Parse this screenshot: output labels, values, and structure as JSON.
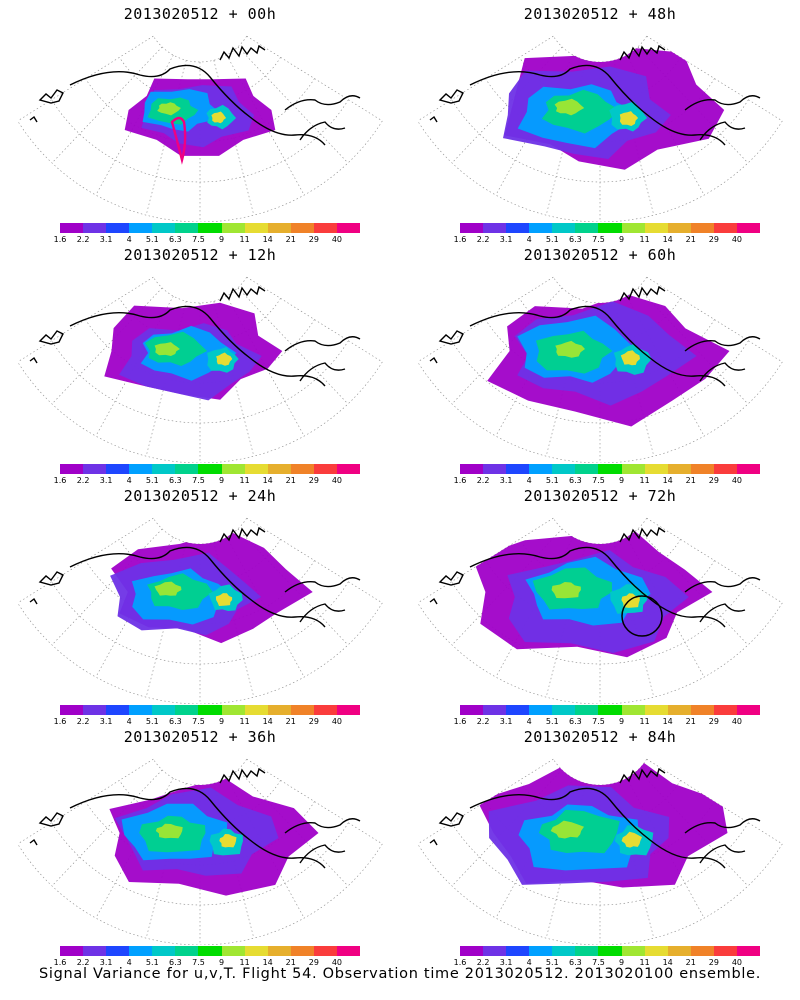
{
  "caption": "Signal Variance for u,v,T. Flight 54. Observation time 2013020512. 2013020100 ensemble.",
  "colorbar": {
    "labels": [
      "1.6",
      "2.2",
      "3.1",
      "4",
      "5.1",
      "6.3",
      "7.5",
      "9",
      "11",
      "14",
      "21",
      "29",
      "40"
    ],
    "colors": [
      "#a000c8",
      "#6e32e6",
      "#1e46ff",
      "#00a0ff",
      "#00c8c8",
      "#00d28c",
      "#00dc00",
      "#a0e632",
      "#e6dc32",
      "#e6af2d",
      "#f08228",
      "#fa3c3c",
      "#f00082"
    ]
  },
  "panels": [
    {
      "title": "2013020512 + 00h",
      "spread": 0.35,
      "peak": 0.78,
      "rings": true,
      "circle": false
    },
    {
      "title": "2013020512 + 48h",
      "spread": 0.85,
      "peak": 0.62,
      "rings": false,
      "circle": false
    },
    {
      "title": "2013020512 + 12h",
      "spread": 0.55,
      "peak": 0.7,
      "rings": false,
      "circle": false
    },
    {
      "title": "2013020512 + 60h",
      "spread": 0.9,
      "peak": 0.64,
      "rings": false,
      "circle": false
    },
    {
      "title": "2013020512 + 24h",
      "spread": 0.65,
      "peak": 0.68,
      "rings": false,
      "circle": false
    },
    {
      "title": "2013020512 + 72h",
      "spread": 0.95,
      "peak": 0.66,
      "rings": false,
      "circle": true
    },
    {
      "title": "2013020512 + 36h",
      "spread": 0.75,
      "peak": 0.66,
      "rings": false,
      "circle": false
    },
    {
      "title": "2013020512 + 84h",
      "spread": 1.0,
      "peak": 0.68,
      "rings": false,
      "circle": false
    }
  ]
}
